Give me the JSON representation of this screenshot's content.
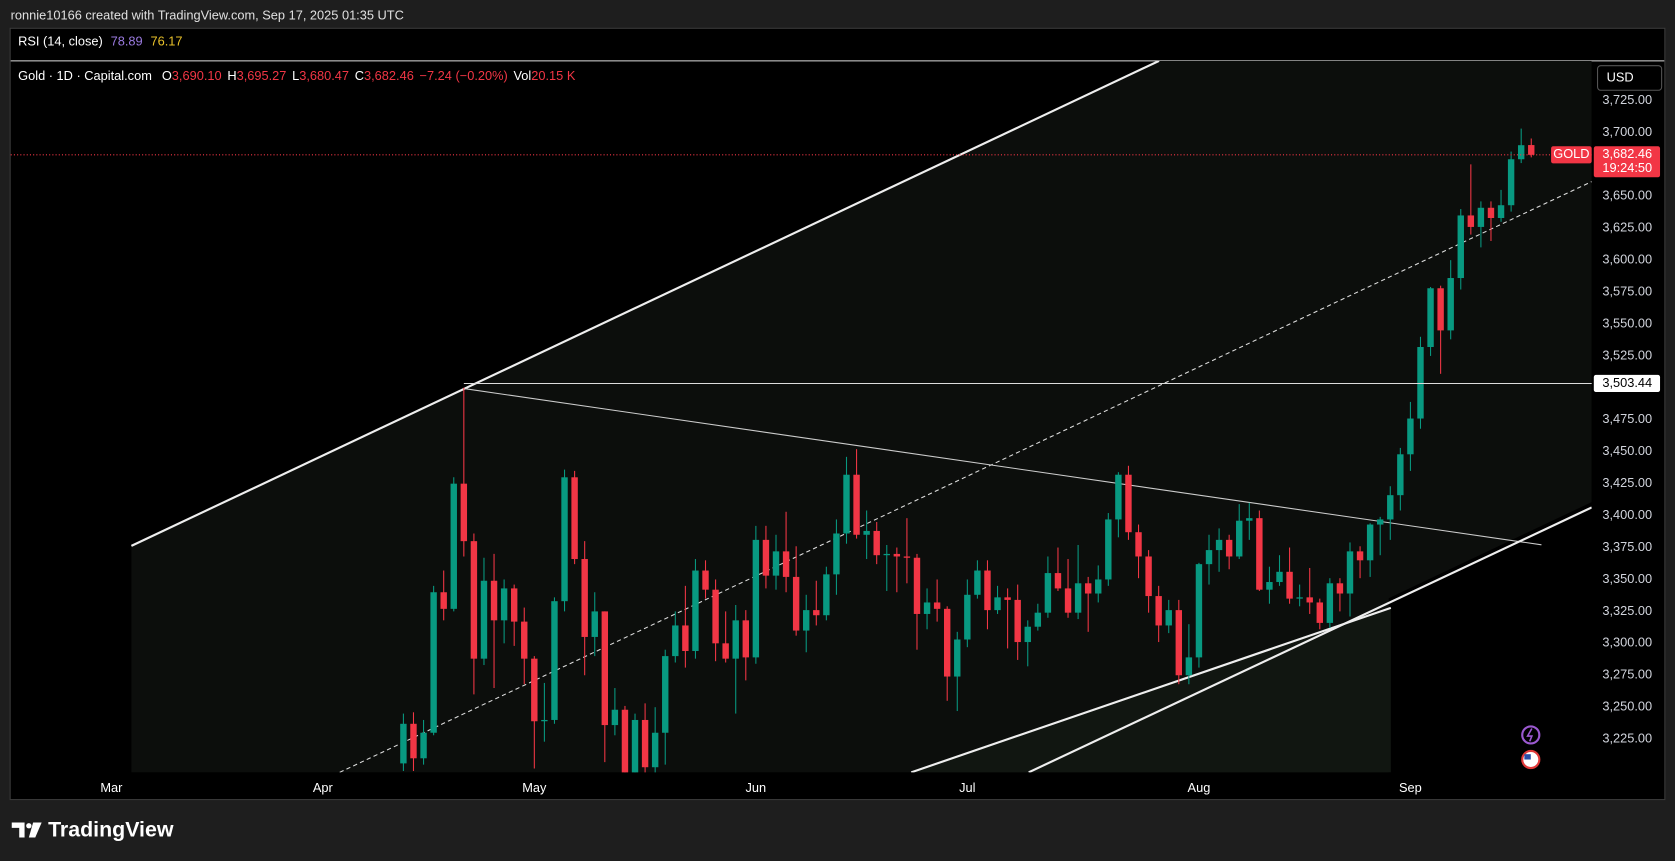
{
  "header": {
    "attribution": "ronnie10166 created with TradingView.com, Sep 17, 2025 01:35 UTC"
  },
  "chart_data": {
    "type": "candlestick",
    "rsi": {
      "label": "RSI (14, close)",
      "value": 78.89,
      "signal": 76.17
    },
    "legend": {
      "symbol": "Gold · 1D · Capital.com",
      "open_key": "O",
      "open": "3,690.10",
      "high_key": "H",
      "high": "3,695.27",
      "low_key": "L",
      "low": "3,680.47",
      "close_key": "C",
      "close": "3,682.46",
      "change": "−7.24 (−0.20%)",
      "volume_key": "Vol",
      "volume": "20.15 K"
    },
    "currency": "USD",
    "last_price": {
      "ticker": "GOLD",
      "value": 3682.46,
      "label": "3,682.46",
      "countdown": "19:24:50"
    },
    "horizontal_line": {
      "value": 3503.44,
      "label": "3,503.44"
    },
    "colors": {
      "up": "#089981",
      "down": "#f23645"
    },
    "xlim": [
      -39,
      118
    ],
    "ylim": [
      3199,
      3756
    ],
    "xticks": [
      {
        "value": -29,
        "label": "Mar"
      },
      {
        "value": -8,
        "label": "Apr"
      },
      {
        "value": 13,
        "label": "May"
      },
      {
        "value": 35,
        "label": "Jun"
      },
      {
        "value": 56,
        "label": "Jul"
      },
      {
        "value": 79,
        "label": "Aug"
      },
      {
        "value": 100,
        "label": "Sep"
      }
    ],
    "yticks": [
      {
        "value": 3225,
        "label": "3,225.00"
      },
      {
        "value": 3250,
        "label": "3,250.00"
      },
      {
        "value": 3275,
        "label": "3,275.00"
      },
      {
        "value": 3300,
        "label": "3,300.00"
      },
      {
        "value": 3325,
        "label": "3,325.00"
      },
      {
        "value": 3350,
        "label": "3,350.00"
      },
      {
        "value": 3375,
        "label": "3,375.00"
      },
      {
        "value": 3400,
        "label": "3,400.00"
      },
      {
        "value": 3425,
        "label": "3,425.00"
      },
      {
        "value": 3450,
        "label": "3,450.00"
      },
      {
        "value": 3475,
        "label": "3,475.00"
      },
      {
        "value": 3525,
        "label": "3,525.00"
      },
      {
        "value": 3550,
        "label": "3,550.00"
      },
      {
        "value": 3575,
        "label": "3,575.00"
      },
      {
        "value": 3600,
        "label": "3,600.00"
      },
      {
        "value": 3625,
        "label": "3,625.00"
      },
      {
        "value": 3650,
        "label": "3,650.00"
      },
      {
        "value": 3700,
        "label": "3,700.00"
      },
      {
        "value": 3725,
        "label": "3,725.00"
      }
    ],
    "candles": [
      [
        3206,
        3245,
        3200,
        3237
      ],
      [
        3237,
        3246,
        3200,
        3210
      ],
      [
        3210,
        3240,
        3205,
        3230
      ],
      [
        3230,
        3345,
        3228,
        3340
      ],
      [
        3340,
        3357,
        3318,
        3327
      ],
      [
        3327,
        3430,
        3325,
        3425
      ],
      [
        3425,
        3500.1,
        3368,
        3380
      ],
      [
        3380,
        3386,
        3260,
        3288
      ],
      [
        3288,
        3367,
        3283,
        3349
      ],
      [
        3349,
        3370,
        3265,
        3318
      ],
      [
        3318,
        3350,
        3300,
        3343
      ],
      [
        3343,
        3346,
        3298,
        3317
      ],
      [
        3317,
        3328,
        3268,
        3288
      ],
      [
        3288,
        3290,
        3202,
        3239
      ],
      [
        3239,
        3269,
        3223,
        3240
      ],
      [
        3240,
        3336,
        3237,
        3333
      ],
      [
        3333,
        3436,
        3325,
        3430
      ],
      [
        3430,
        3435,
        3362,
        3366
      ],
      [
        3366,
        3380,
        3275,
        3305
      ],
      [
        3305,
        3340,
        3290,
        3325
      ],
      [
        3325,
        3325,
        3207,
        3236
      ],
      [
        3236,
        3265,
        3228,
        3248
      ],
      [
        3248,
        3251,
        3170,
        3178
      ],
      [
        3178,
        3245,
        3121,
        3240
      ],
      [
        3240,
        3253,
        3197,
        3203
      ],
      [
        3203,
        3250,
        3198,
        3230
      ],
      [
        3230,
        3295,
        3205,
        3290
      ],
      [
        3290,
        3325,
        3285,
        3314
      ],
      [
        3314,
        3345,
        3281,
        3294
      ],
      [
        3294,
        3366,
        3288,
        3357
      ],
      [
        3357,
        3365,
        3335,
        3342
      ],
      [
        3342,
        3350,
        3286,
        3300
      ],
      [
        3300,
        3325,
        3285,
        3288
      ],
      [
        3288,
        3330,
        3245,
        3318
      ],
      [
        3318,
        3326,
        3271,
        3289
      ],
      [
        3289,
        3392,
        3284,
        3381
      ],
      [
        3381,
        3392,
        3343,
        3353
      ],
      [
        3353,
        3385,
        3342,
        3372
      ],
      [
        3372,
        3403,
        3340,
        3352
      ],
      [
        3352,
        3376,
        3306,
        3310
      ],
      [
        3310,
        3338,
        3293,
        3326
      ],
      [
        3326,
        3349,
        3314,
        3322
      ],
      [
        3322,
        3360,
        3318,
        3354
      ],
      [
        3354,
        3397,
        3338,
        3386
      ],
      [
        3386,
        3446,
        3378,
        3432
      ],
      [
        3432,
        3452,
        3382,
        3385
      ],
      [
        3385,
        3404,
        3366,
        3388
      ],
      [
        3388,
        3395,
        3362,
        3369
      ],
      [
        3369,
        3377,
        3341,
        3370
      ],
      [
        3370,
        3375,
        3340,
        3368
      ],
      [
        3368,
        3398,
        3347,
        3367
      ],
      [
        3367,
        3370,
        3295,
        3323
      ],
      [
        3323,
        3343,
        3311,
        3332
      ],
      [
        3332,
        3350,
        3317,
        3327
      ],
      [
        3327,
        3329,
        3255,
        3274
      ],
      [
        3274,
        3309,
        3247,
        3303
      ],
      [
        3303,
        3350,
        3297,
        3338
      ],
      [
        3338,
        3365,
        3335,
        3357
      ],
      [
        3357,
        3365,
        3311,
        3326
      ],
      [
        3326,
        3345,
        3323,
        3336
      ],
      [
        3336,
        3343,
        3296,
        3334
      ],
      [
        3334,
        3346,
        3287,
        3301
      ],
      [
        3301,
        3318,
        3282,
        3313
      ],
      [
        3313,
        3331,
        3310,
        3324
      ],
      [
        3324,
        3368,
        3320,
        3355
      ],
      [
        3355,
        3375,
        3341,
        3343
      ],
      [
        3343,
        3366,
        3320,
        3324
      ],
      [
        3324,
        3377,
        3319,
        3347
      ],
      [
        3347,
        3352,
        3309,
        3339
      ],
      [
        3339,
        3361,
        3332,
        3350
      ],
      [
        3350,
        3402,
        3345,
        3397
      ],
      [
        3397,
        3434,
        3383,
        3432
      ],
      [
        3432,
        3439,
        3381,
        3387
      ],
      [
        3387,
        3393,
        3351,
        3368
      ],
      [
        3368,
        3373,
        3324,
        3337
      ],
      [
        3337,
        3345,
        3301,
        3314
      ],
      [
        3314,
        3334,
        3308,
        3326
      ],
      [
        3326,
        3334,
        3268,
        3275
      ],
      [
        3275,
        3315,
        3268,
        3289
      ],
      [
        3289,
        3363,
        3281,
        3362
      ],
      [
        3362,
        3385,
        3346,
        3373
      ],
      [
        3373,
        3390,
        3356,
        3381
      ],
      [
        3381,
        3385,
        3358,
        3368
      ],
      [
        3368,
        3409,
        3366,
        3396
      ],
      [
        3396,
        3410,
        3381,
        3398
      ],
      [
        3398,
        3404,
        3341,
        3342
      ],
      [
        3342,
        3360,
        3331,
        3348
      ],
      [
        3348,
        3369,
        3345,
        3356
      ],
      [
        3356,
        3375,
        3331,
        3335
      ],
      [
        3335,
        3346,
        3329,
        3336
      ],
      [
        3336,
        3359,
        3323,
        3332
      ],
      [
        3332,
        3335,
        3311,
        3316
      ],
      [
        3316,
        3351,
        3312,
        3347
      ],
      [
        3347,
        3351,
        3325,
        3339
      ],
      [
        3339,
        3379,
        3321,
        3372
      ],
      [
        3372,
        3376,
        3351,
        3365
      ],
      [
        3365,
        3394,
        3352,
        3393
      ],
      [
        3393,
        3399,
        3369,
        3397
      ],
      [
        3397,
        3423,
        3381,
        3416
      ],
      [
        3416,
        3453,
        3404,
        3448
      ],
      [
        3448,
        3489,
        3435,
        3476
      ],
      [
        3476,
        3540,
        3468,
        3532
      ],
      [
        3532,
        3579,
        3525,
        3578
      ],
      [
        3578,
        3580,
        3511,
        3545
      ],
      [
        3545,
        3600,
        3538,
        3586
      ],
      [
        3586,
        3640,
        3577,
        3635
      ],
      [
        3635,
        3675,
        3620,
        3626
      ],
      [
        3626,
        3646,
        3610,
        3641
      ],
      [
        3641,
        3646,
        3615,
        3633
      ],
      [
        3633,
        3655,
        3630,
        3643
      ],
      [
        3643,
        3685,
        3638,
        3679
      ],
      [
        3679,
        3703,
        3676,
        3690
      ],
      [
        3690.1,
        3695.27,
        3680.47,
        3682.46
      ]
    ]
  },
  "footer": {
    "brand": "TradingView"
  }
}
